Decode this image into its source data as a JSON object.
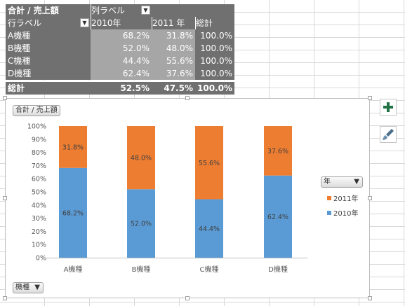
{
  "pivot": {
    "header1": {
      "c1": "合計 / 売上額",
      "c2": "列ラベル"
    },
    "header2": {
      "c1": "行ラベル",
      "c2": "2010年",
      "c3": "2011 年",
      "c4": "総計"
    },
    "rows": [
      {
        "label": "A機種",
        "v2010": "68.2%",
        "v2011": "31.8%",
        "total": "100.0%"
      },
      {
        "label": "B機種",
        "v2010": "52.0%",
        "v2011": "48.0%",
        "total": "100.0%"
      },
      {
        "label": "C機種",
        "v2010": "44.4%",
        "v2011": "55.6%",
        "total": "100.0%"
      },
      {
        "label": "D機種",
        "v2010": "62.4%",
        "v2011": "37.6%",
        "total": "100.0%"
      }
    ],
    "total": {
      "label": "総計",
      "v2010": "52.5%",
      "v2011": "47.5%",
      "total": "100.0%"
    }
  },
  "chart_field_buttons": {
    "value_field": "合計 / 売上額",
    "legend_field": "年",
    "axis_field": "機種"
  },
  "colors": {
    "series_2010": "#5b9bd5",
    "series_2011": "#ed7d31",
    "pivot_dark": "#707070",
    "pivot_mid": "#a6a6a6",
    "plus_green": "#217346"
  },
  "icons": {
    "add_element": "plus-icon",
    "chart_style": "paintbrush-icon"
  },
  "chart_data": {
    "type": "bar",
    "stacked": true,
    "percent": true,
    "categories": [
      "A機種",
      "B機種",
      "C機種",
      "D機種"
    ],
    "series": [
      {
        "name": "2010年",
        "values": [
          68.2,
          52.0,
          44.4,
          62.4
        ],
        "labels": [
          "68.2%",
          "52.0%",
          "44.4%",
          "62.4%"
        ],
        "color": "#5b9bd5"
      },
      {
        "name": "2011年",
        "values": [
          31.8,
          48.0,
          55.6,
          37.6
        ],
        "labels": [
          "31.8%",
          "48.0%",
          "55.6%",
          "37.6%"
        ],
        "color": "#ed7d31"
      }
    ],
    "y_ticks": [
      "0%",
      "10%",
      "20%",
      "30%",
      "40%",
      "50%",
      "60%",
      "70%",
      "80%",
      "90%",
      "100%"
    ],
    "ylim": [
      0,
      100
    ],
    "grid": false,
    "legend_position": "right",
    "legend_order": [
      "2011年",
      "2010年"
    ]
  }
}
